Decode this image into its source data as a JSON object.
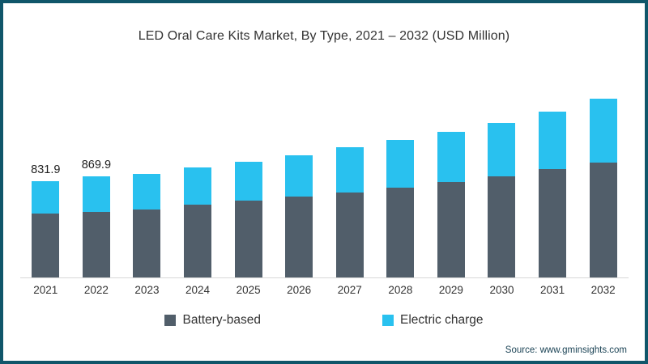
{
  "title": "LED Oral Care Kits Market, By Type, 2021 – 2032 (USD Million)",
  "source_note": "Source: www.gminsights.com",
  "colors": {
    "frame_border": "#10566a",
    "battery": "#515e6a",
    "electric": "#29c1ef",
    "axis_line": "#d8d8d8",
    "text": "#333333"
  },
  "legend": {
    "items": [
      {
        "label": "Battery-based",
        "color": "#515e6a"
      },
      {
        "label": "Electric charge",
        "color": "#29c1ef"
      }
    ]
  },
  "chart_data": {
    "type": "bar",
    "stacked": true,
    "title": "LED Oral Care Kits Market, By Type, 2021 – 2032 (USD Million)",
    "units": "USD Million",
    "categories": [
      "2021",
      "2022",
      "2023",
      "2024",
      "2025",
      "2026",
      "2027",
      "2028",
      "2029",
      "2030",
      "2031",
      "2032"
    ],
    "series": [
      {
        "name": "Battery-based",
        "color": "#515e6a",
        "values": [
          553.9,
          564.9,
          582,
          627,
          662,
          700,
          732,
          777,
          819,
          868,
          931,
          993
        ]
      },
      {
        "name": "Electric charge",
        "color": "#29c1ef",
        "values": [
          278.0,
          305.0,
          313,
          324,
          338,
          349,
          387,
          411,
          439,
          460,
          501,
          544
        ]
      }
    ],
    "totals": [
      831.9,
      869.9,
      895,
      951,
      1000,
      1049,
      1119,
      1188,
      1258,
      1328,
      1432,
      1537
    ],
    "data_labels": [
      "831.9",
      "869.9",
      "",
      "",
      "",
      "",
      "",
      "",
      "",
      "",
      "",
      ""
    ],
    "xlabel": "",
    "ylabel": "",
    "ylim": [
      0,
      1600
    ],
    "grid": false,
    "legend_position": "bottom"
  }
}
